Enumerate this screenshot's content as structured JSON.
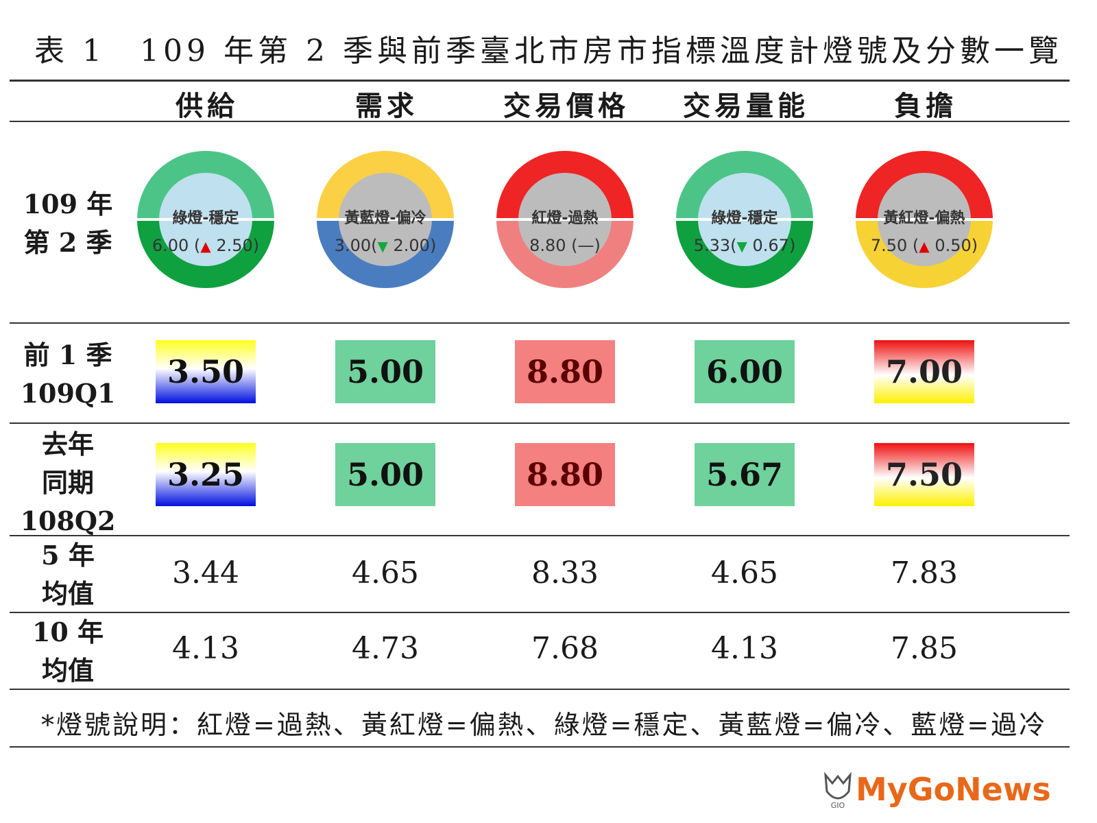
{
  "title": "表 1　109 年第 2 季與前季臺北市房市指標溫度計燈號及分數一覽",
  "columns": [
    "供給",
    "需求",
    "交易價格",
    "交易量能",
    "負擔"
  ],
  "rows": {
    "current": {
      "label_line1": "109 年",
      "label_line2": "第 2 季"
    },
    "prev_q": {
      "label_line1": "前 1 季",
      "label_line2": "109Q1"
    },
    "last_year": {
      "label_line1": "去年",
      "label_line2": "同期",
      "label_line3": "108Q2"
    },
    "avg5": {
      "label_line1": "5 年",
      "label_line2": "均值"
    },
    "avg10": {
      "label_line1": "10 年",
      "label_line2": "均值"
    }
  },
  "current_lights": [
    {
      "status": "綠燈-穩定",
      "score": "6.00",
      "change": "2.50",
      "dir": "up",
      "ring_top": "#4cc487",
      "ring_bottom": "#0fa040",
      "inner": "#bfe0ee",
      "score_text": "6.00 (",
      "end": ")"
    },
    {
      "status": "黃藍燈-偏冷",
      "score": "3.00",
      "change": "2.00",
      "dir": "down",
      "ring_top": "#fbd044",
      "ring_bottom": "#4a7dc0",
      "inner": "#bcbcbc",
      "score_text": "3.00(",
      "end": ")"
    },
    {
      "status": "紅燈-過熱",
      "score": "8.80",
      "change": "—",
      "dir": "none",
      "ring_top": "#ef2424",
      "ring_bottom": "#f08080",
      "inner": "#bcbcbc",
      "score_text": "8.80 (—)",
      "end": ""
    },
    {
      "status": "綠燈-穩定",
      "score": "5.33",
      "change": "0.67",
      "dir": "down",
      "ring_top": "#4cc487",
      "ring_bottom": "#0fa040",
      "inner": "#bfe0ee",
      "score_text": "5.33(",
      "end": ")"
    },
    {
      "status": "黃紅燈-偏熱",
      "score": "7.50",
      "change": "0.50",
      "dir": "up",
      "ring_top": "#ef2424",
      "ring_bottom": "#f7d234",
      "inner": "#bcbcbc",
      "score_text": "7.50 (",
      "end": ")"
    }
  ],
  "prev_q_values": [
    "3.50",
    "5.00",
    "8.80",
    "6.00",
    "7.00"
  ],
  "last_year_values": [
    "3.25",
    "5.00",
    "8.80",
    "5.67",
    "7.50"
  ],
  "avg5_values": [
    "3.44",
    "4.65",
    "8.33",
    "4.65",
    "7.83"
  ],
  "avg10_values": [
    "4.13",
    "4.73",
    "7.68",
    "4.13",
    "7.85"
  ],
  "note": "*燈號說明：紅燈=過熱、黃紅燈=偏熱、綠燈=穩定、黃藍燈=偏冷、藍燈=過冷",
  "logo": "MyGoNews",
  "logo_mark_text": "GIO",
  "colors": {
    "blue_yellow": "linear-gradient(#ffff20,#ffffff 45%,#0010e0)",
    "green": "#6fd19c",
    "red_pink": "#f48080",
    "red_yellow": "linear-gradient(#ee1010,#ffffff 55%,#fff000)"
  }
}
